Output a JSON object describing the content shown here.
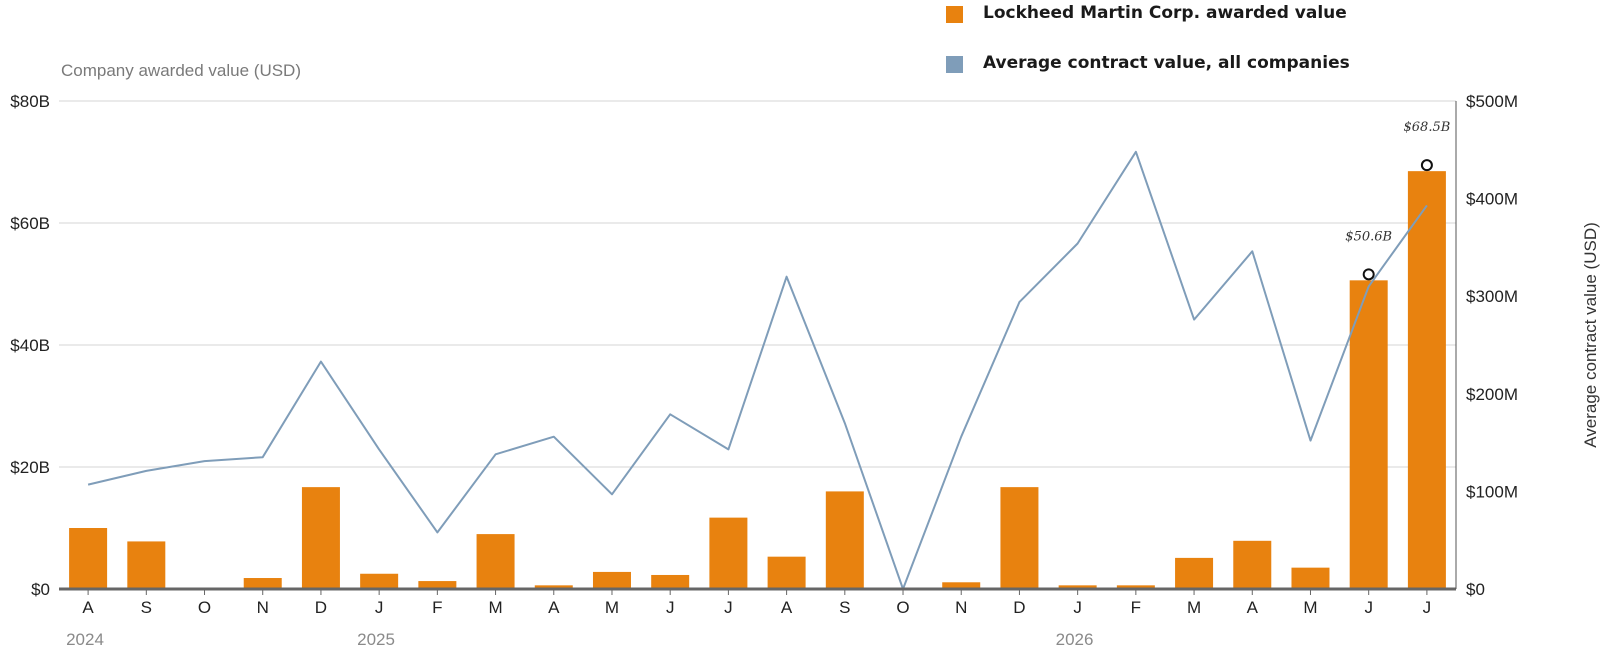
{
  "chart_data": {
    "type": "bar",
    "categories": [
      "A",
      "S",
      "O",
      "N",
      "D",
      "J",
      "F",
      "M",
      "A",
      "M",
      "J",
      "J",
      "A",
      "S",
      "O",
      "N",
      "D",
      "J",
      "F",
      "M",
      "A",
      "M",
      "J",
      "J"
    ],
    "year_labels": [
      {
        "label": "2024",
        "index": 0
      },
      {
        "label": "2025",
        "index": 5
      },
      {
        "label": "2026",
        "index": 17
      }
    ],
    "series": [
      {
        "name": "Lockheed Martin Corp. awarded value",
        "type": "bar",
        "axis": "left",
        "color": "#E8820F",
        "values": [
          10.0,
          7.8,
          0,
          1.8,
          16.7,
          2.5,
          1.3,
          9.0,
          0.6,
          2.8,
          2.3,
          11.7,
          5.3,
          16.0,
          0,
          1.1,
          16.7,
          0.6,
          0.6,
          5.1,
          7.9,
          3.5,
          50.6,
          68.5
        ]
      },
      {
        "name": "Average contract value, all companies",
        "type": "line",
        "axis": "right",
        "color": "#7F9DB9",
        "values": [
          107,
          121,
          131,
          135,
          233,
          143,
          58,
          138,
          156,
          97,
          179,
          143,
          320,
          170,
          0,
          156,
          294,
          354,
          448,
          276,
          346,
          152,
          310,
          393
        ]
      }
    ],
    "left_axis": {
      "title": "Company awarded value (USD)",
      "ylim": [
        0,
        80
      ],
      "ticks": [
        0,
        20,
        40,
        60,
        80
      ],
      "tick_labels": [
        "$0",
        "$20B",
        "$40B",
        "$60B",
        "$80B"
      ]
    },
    "right_axis": {
      "title": "Average contract value (USD)",
      "ylim": [
        0,
        500
      ],
      "ticks": [
        0,
        100,
        200,
        300,
        400,
        500
      ],
      "tick_labels": [
        "$0",
        "$100M",
        "$200M",
        "$300M",
        "$400M",
        "$500M"
      ]
    },
    "annotations": [
      {
        "index": 22,
        "label": "$50.6B"
      },
      {
        "index": 23,
        "label": "$68.5B"
      }
    ],
    "grid": true,
    "legend": "top"
  }
}
